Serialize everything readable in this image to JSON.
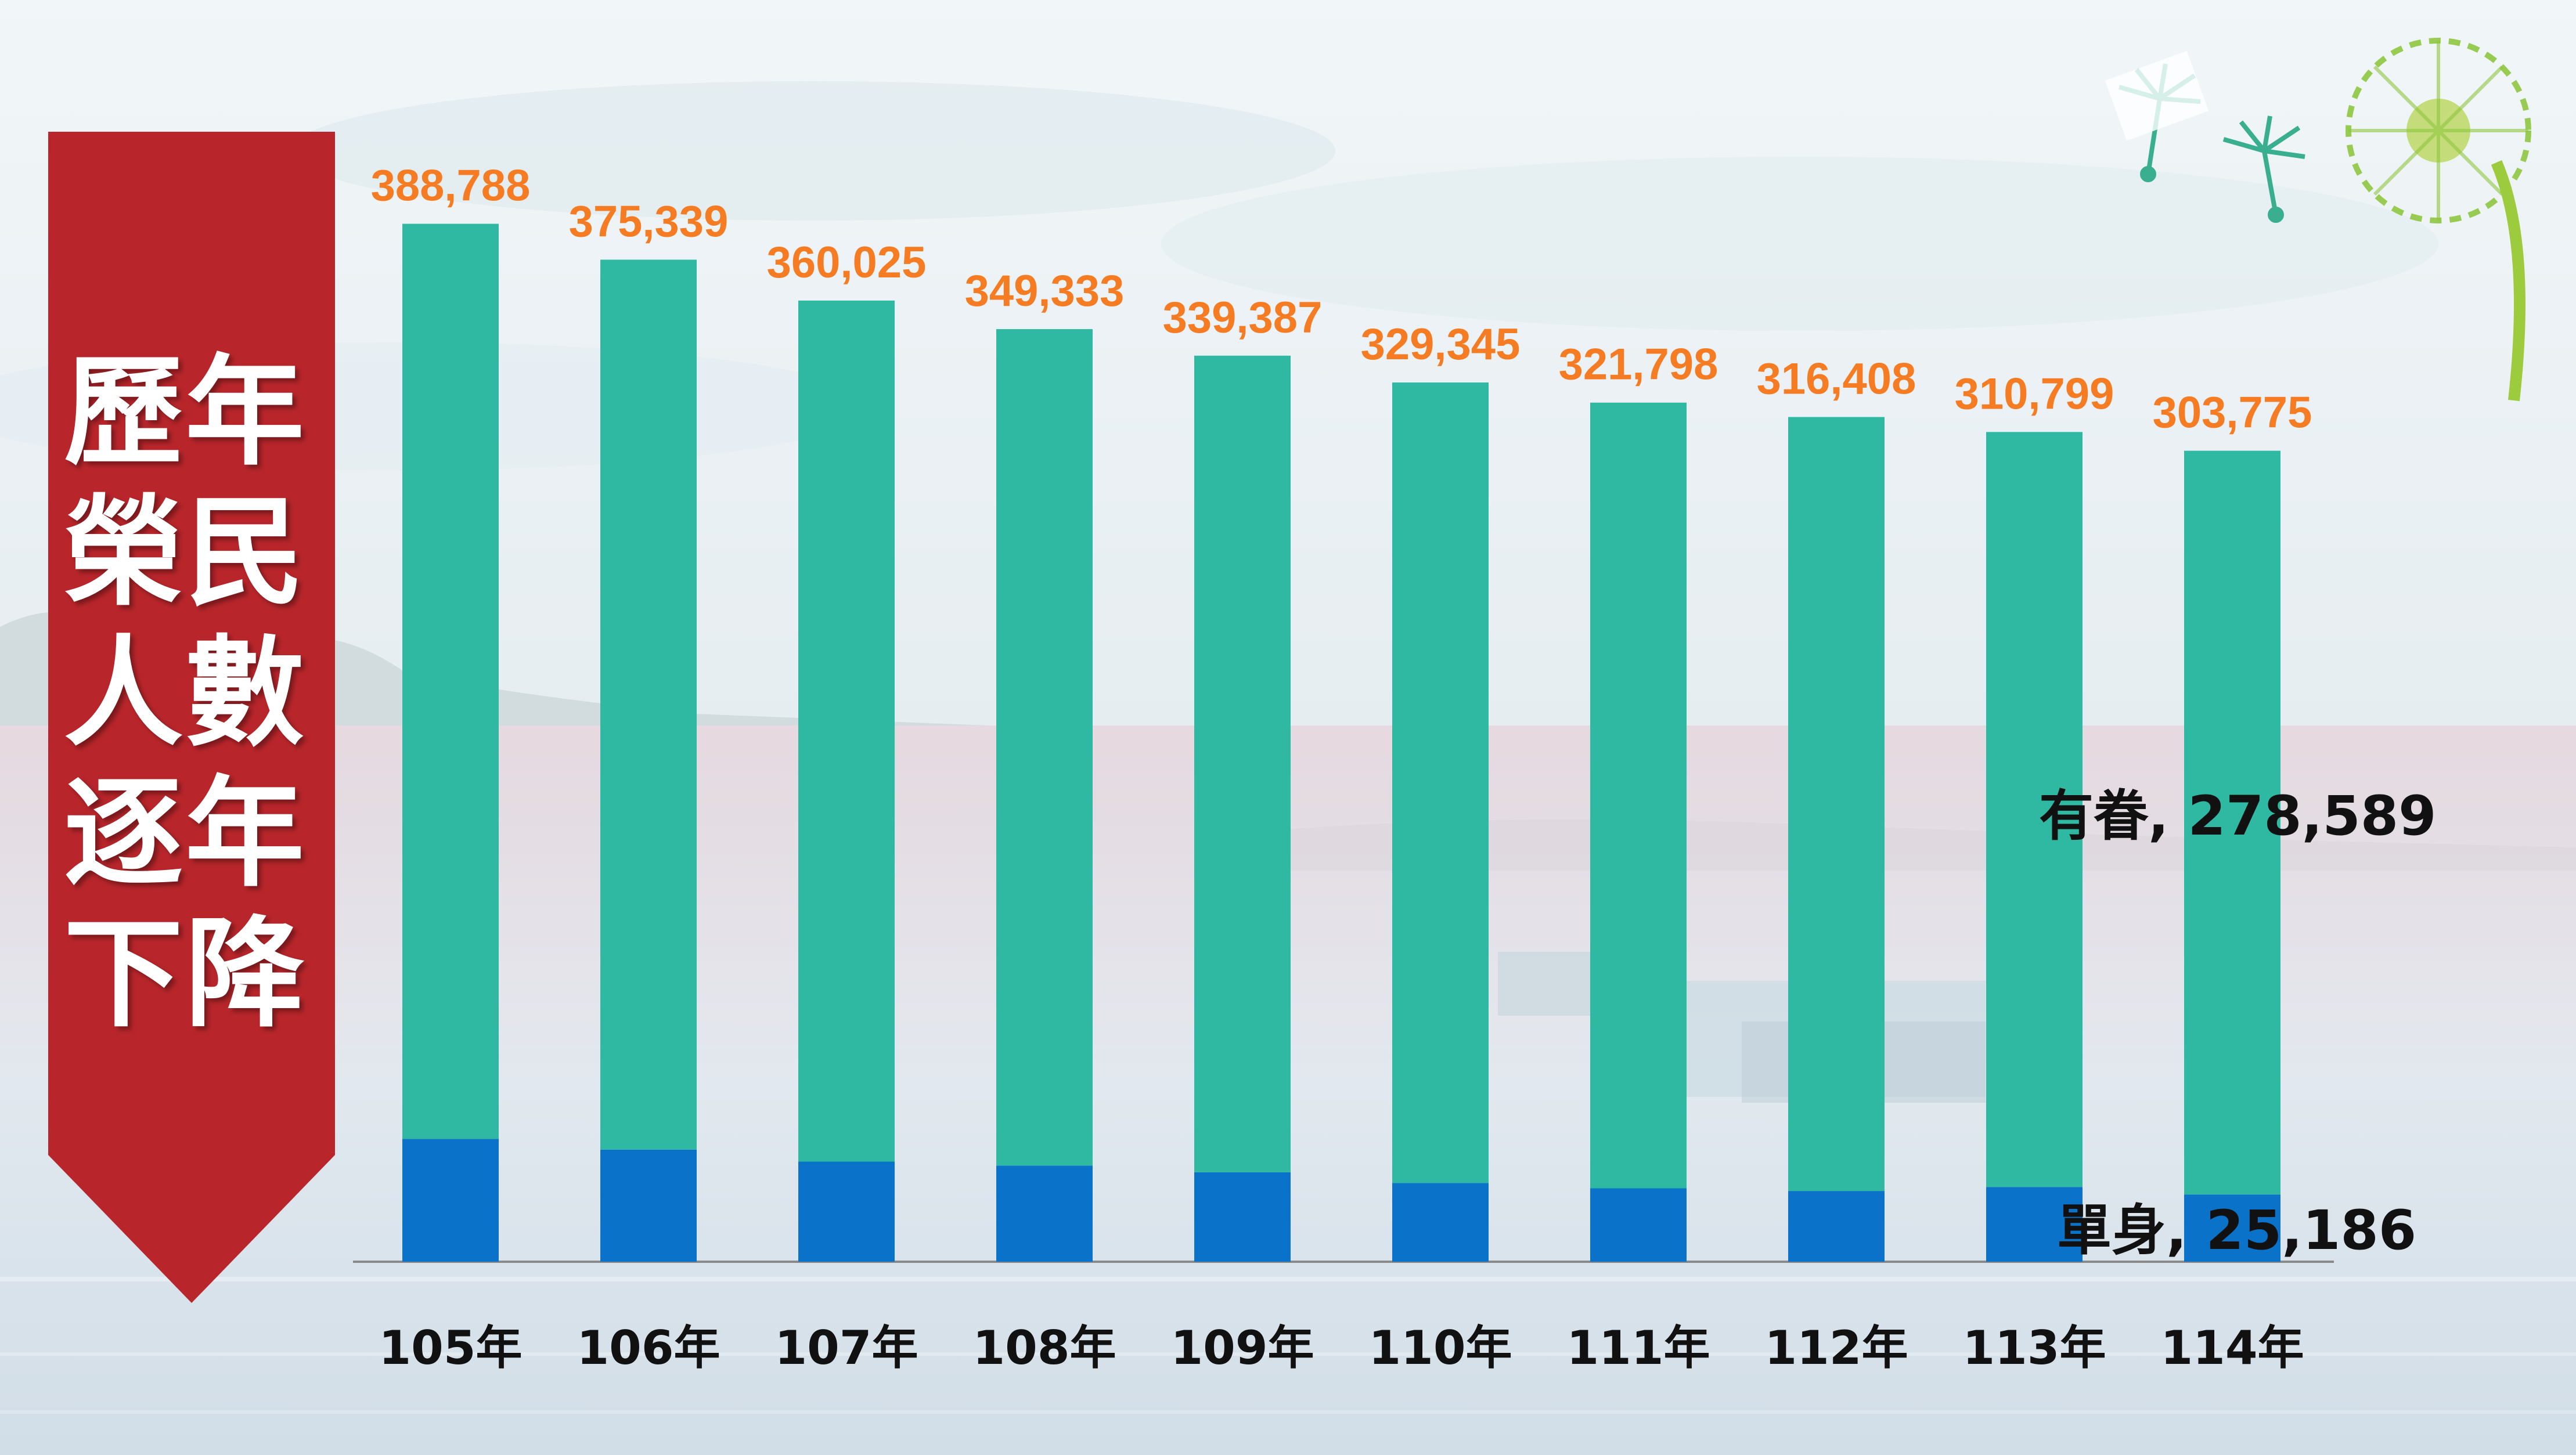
{
  "banner": {
    "text": "歷年榮民人數逐年下降",
    "color": "#b8262b",
    "text_color": "#ffffff"
  },
  "colors": {
    "total_label": "#f57c22",
    "married_series": "#2fb9a3",
    "single_series": "#0a72c8"
  },
  "chart_data": {
    "type": "bar",
    "stacked": true,
    "categories": [
      "105年",
      "106年",
      "107年",
      "108年",
      "109年",
      "110年",
      "111年",
      "112年",
      "113年",
      "114年"
    ],
    "totals": [
      388788,
      375339,
      360025,
      349333,
      339387,
      329345,
      321798,
      316408,
      310799,
      303775
    ],
    "total_labels": [
      "388,788",
      "375,339",
      "360,025",
      "349,333",
      "339,387",
      "329,345",
      "321,798",
      "316,408",
      "310,799",
      "303,775"
    ],
    "series": [
      {
        "name": "單身",
        "color": "#0a72c8",
        "values": [
          46000,
          42000,
          37500,
          36000,
          33500,
          29500,
          27500,
          26500,
          28000,
          25186
        ]
      },
      {
        "name": "有眷",
        "color": "#2fb9a3",
        "values": [
          342788,
          333339,
          322525,
          313333,
          305887,
          299845,
          294298,
          289908,
          282799,
          278589
        ]
      }
    ],
    "series_labels": [
      {
        "series": "有眷",
        "text": "有眷, 278,589"
      },
      {
        "series": "單身",
        "text": "單身, 25,186"
      }
    ],
    "ylim": [
      0,
      390000
    ],
    "grid": false,
    "legend": "none",
    "xlabel": "",
    "ylabel": ""
  }
}
